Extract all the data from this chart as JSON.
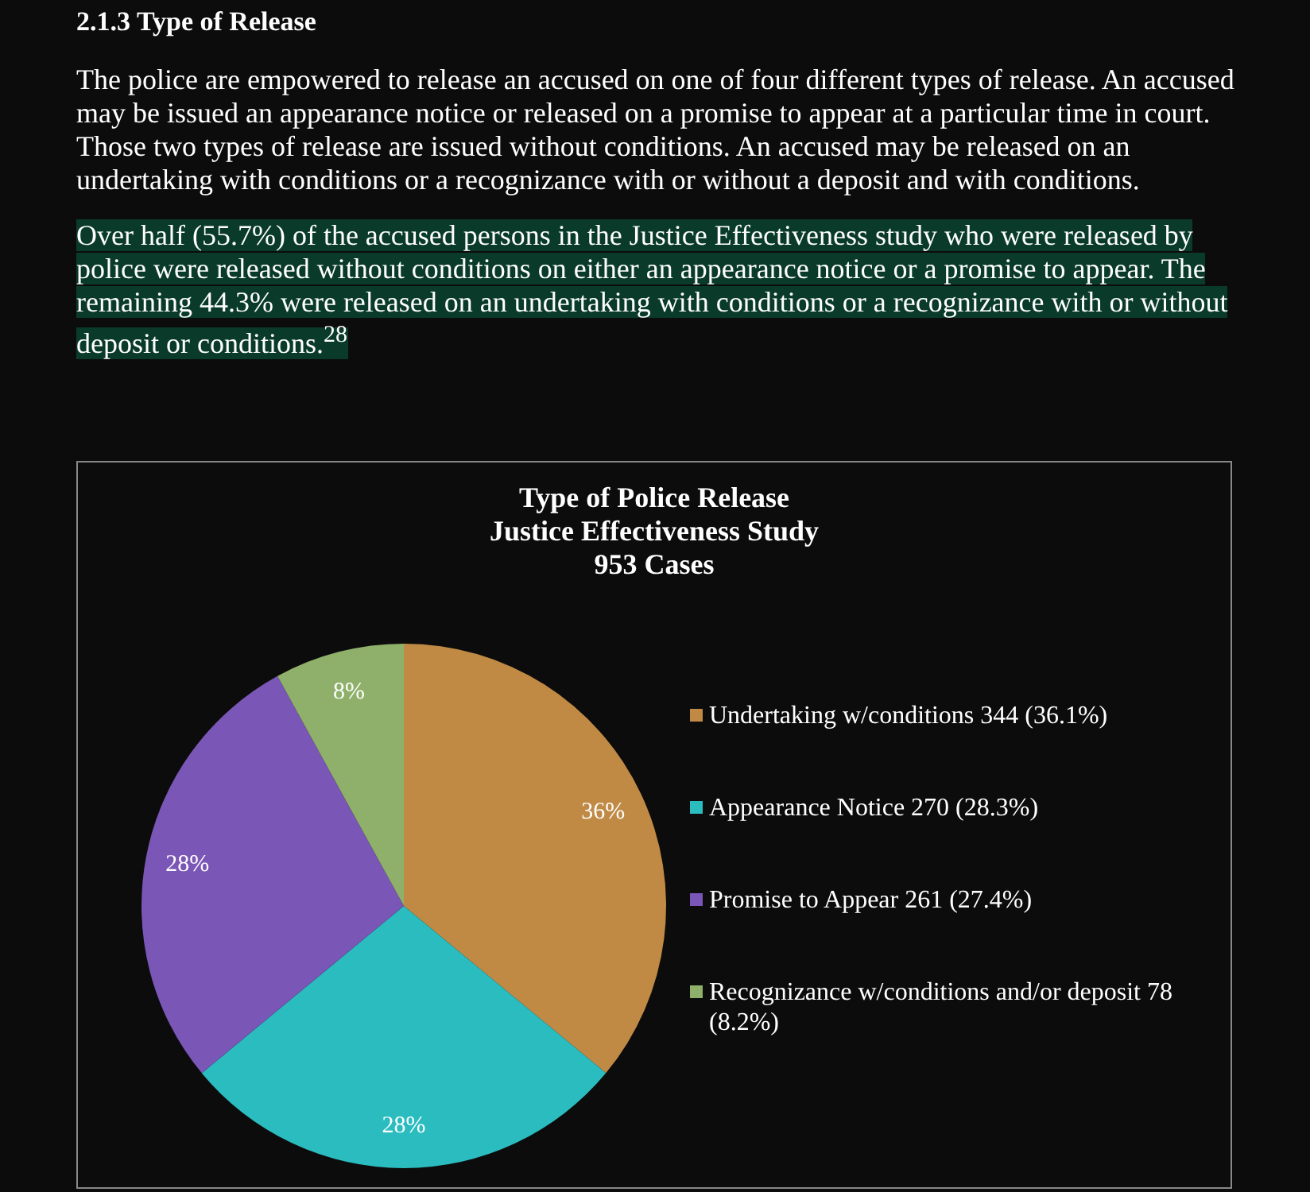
{
  "chart_data": {
    "type": "pie",
    "title": "Type of Police Release",
    "subtitle": "Justice Effectiveness Study\n953 Cases",
    "categories": [
      "Undertaking w/conditions 344 (36.1%)",
      "Appearance Notice 270 (28.3%)",
      "Promise to Appear 261 (27.4%)",
      "Recognizance w/conditions and/or deposit  78 (8.2%)"
    ],
    "values": [
      36,
      28,
      28,
      8
    ],
    "value_labels": [
      "36%",
      "28%",
      "28%",
      "8%"
    ],
    "colors": [
      "#c08a45",
      "#2bbcc0",
      "#7a56b6",
      "#8fb06a"
    ],
    "legend": "right",
    "annotations": [
      "2.1.3 Type of Release",
      "The police are empowered to release an accused on one of four different types of release. An accused may be issued an appearance notice or released on a promise to appear at a particular time in court. Those two types of release are issued without conditions. An accused may be released on an undertaking with conditions or a recognizance with or without a deposit and with conditions.",
      "Over half (55.7%) of the accused persons in the Justice Effectiveness study who were released by police were released without conditions on either an appearance notice or a promise to appear. The remaining 44.3% were released on an undertaking with conditions or a recognizance with or without deposit or conditions.$^{28}$"
    ]
  }
}
